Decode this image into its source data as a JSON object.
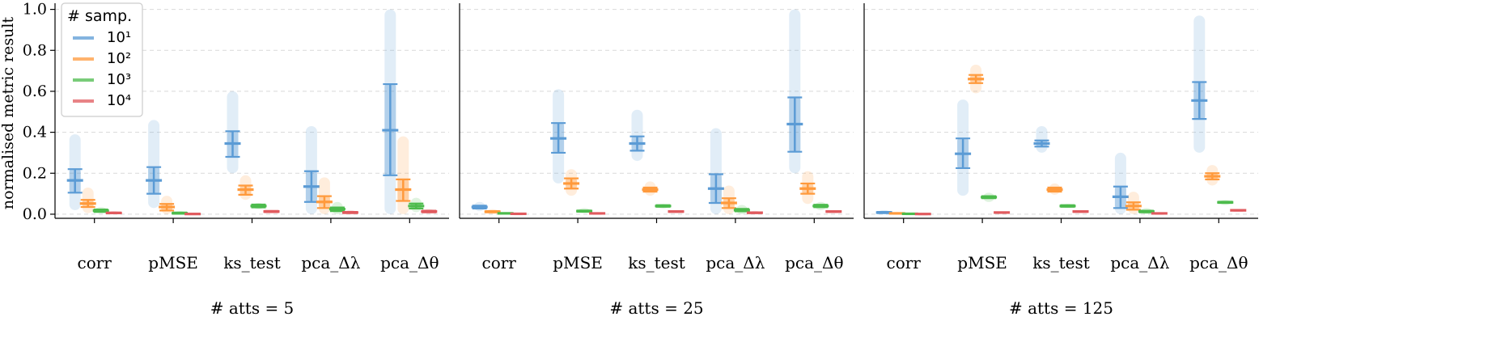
{
  "figure": {
    "ylabel": "normalised metric result"
  },
  "legend": {
    "title": "# samp.",
    "labels": [
      "10¹",
      "10²",
      "10³",
      "10⁴"
    ],
    "location": "top-left"
  },
  "colors": {
    "series": [
      "#5b9bd5",
      "#ff9a3c",
      "#4cbb4c",
      "#e05a5e"
    ],
    "grid": "#d9d9d9",
    "axis": "#000000"
  },
  "chart_data": [
    {
      "type": "strip-errorbar",
      "title": "# atts = 5",
      "categories": [
        "corr",
        "pMSE",
        "ks_test",
        "pca_Δλ",
        "pca_Δθ"
      ],
      "ylim": [
        -0.02,
        1.03
      ],
      "yticks": [
        "0.0",
        "0.2",
        "0.4",
        "0.6",
        "0.8",
        "1.0"
      ],
      "grid": true,
      "series": [
        {
          "name": "10¹",
          "mean": [
            0.165,
            0.165,
            0.345,
            0.135,
            0.41
          ],
          "lower": [
            0.105,
            0.1,
            0.28,
            0.06,
            0.19
          ],
          "upper": [
            0.22,
            0.23,
            0.405,
            0.21,
            0.635
          ],
          "min": [
            0.02,
            0.03,
            0.2,
            0.0,
            0.0
          ],
          "max": [
            0.39,
            0.46,
            0.6,
            0.43,
            1.0
          ]
        },
        {
          "name": "10²",
          "mean": [
            0.052,
            0.035,
            0.12,
            0.06,
            0.12
          ],
          "lower": [
            0.035,
            0.018,
            0.095,
            0.03,
            0.065
          ],
          "upper": [
            0.07,
            0.05,
            0.14,
            0.088,
            0.17
          ],
          "min": [
            0.005,
            0.0,
            0.07,
            0.0,
            0.0
          ],
          "max": [
            0.13,
            0.09,
            0.19,
            0.18,
            0.38
          ]
        },
        {
          "name": "10³",
          "mean": [
            0.017,
            0.005,
            0.04,
            0.025,
            0.04
          ],
          "lower": [
            0.011,
            0.002,
            0.033,
            0.015,
            0.028
          ],
          "upper": [
            0.023,
            0.008,
            0.047,
            0.033,
            0.052
          ],
          "min": [
            0.005,
            0.0,
            0.025,
            0.0,
            0.01
          ],
          "max": [
            0.035,
            0.015,
            0.055,
            0.06,
            0.08
          ]
        },
        {
          "name": "10⁴",
          "mean": [
            0.006,
            0.001,
            0.013,
            0.008,
            0.013
          ],
          "lower": [
            0.004,
            0.0,
            0.01,
            0.005,
            0.009
          ],
          "upper": [
            0.008,
            0.003,
            0.016,
            0.011,
            0.017
          ],
          "min": [
            0.0,
            0.0,
            0.005,
            0.0,
            0.003
          ],
          "max": [
            0.015,
            0.006,
            0.02,
            0.02,
            0.025
          ]
        }
      ]
    },
    {
      "type": "strip-errorbar",
      "title": "# atts = 25",
      "categories": [
        "corr",
        "pMSE",
        "ks_test",
        "pca_Δλ",
        "pca_Δθ"
      ],
      "ylim": [
        -0.02,
        1.03
      ],
      "yticks": [
        "0.0",
        "0.2",
        "0.4",
        "0.6",
        "0.8",
        "1.0"
      ],
      "grid": true,
      "series": [
        {
          "name": "10¹",
          "mean": [
            0.035,
            0.37,
            0.345,
            0.125,
            0.44
          ],
          "lower": [
            0.028,
            0.3,
            0.31,
            0.055,
            0.305
          ],
          "upper": [
            0.042,
            0.445,
            0.38,
            0.195,
            0.57
          ],
          "min": [
            0.015,
            0.15,
            0.26,
            0.0,
            0.2
          ],
          "max": [
            0.06,
            0.61,
            0.51,
            0.42,
            1.0
          ]
        },
        {
          "name": "10²",
          "mean": [
            0.012,
            0.15,
            0.12,
            0.055,
            0.125
          ],
          "lower": [
            0.009,
            0.125,
            0.11,
            0.03,
            0.1
          ],
          "upper": [
            0.015,
            0.175,
            0.13,
            0.078,
            0.15
          ],
          "min": [
            0.0,
            0.09,
            0.09,
            0.0,
            0.05
          ],
          "max": [
            0.025,
            0.22,
            0.16,
            0.14,
            0.21
          ]
        },
        {
          "name": "10³",
          "mean": [
            0.004,
            0.015,
            0.04,
            0.02,
            0.04
          ],
          "lower": [
            0.002,
            0.012,
            0.036,
            0.014,
            0.034
          ],
          "upper": [
            0.006,
            0.018,
            0.044,
            0.026,
            0.046
          ],
          "min": [
            0.0,
            0.005,
            0.028,
            0.0,
            0.02
          ],
          "max": [
            0.01,
            0.03,
            0.05,
            0.045,
            0.06
          ]
        },
        {
          "name": "10⁴",
          "mean": [
            0.002,
            0.004,
            0.013,
            0.007,
            0.013
          ],
          "lower": [
            0.001,
            0.003,
            0.011,
            0.005,
            0.011
          ],
          "upper": [
            0.003,
            0.005,
            0.015,
            0.009,
            0.015
          ],
          "min": [
            0.0,
            0.0,
            0.006,
            0.0,
            0.005
          ],
          "max": [
            0.006,
            0.01,
            0.02,
            0.016,
            0.02
          ]
        }
      ]
    },
    {
      "type": "strip-errorbar",
      "title": "# atts = 125",
      "categories": [
        "corr",
        "pMSE",
        "ks_test",
        "pca_Δλ",
        "pca_Δθ"
      ],
      "ylim": [
        -0.02,
        1.03
      ],
      "yticks": [
        "0.0",
        "0.2",
        "0.4",
        "0.6",
        "0.8",
        "1.0"
      ],
      "grid": true,
      "series": [
        {
          "name": "10¹",
          "mean": [
            0.008,
            0.295,
            0.345,
            0.085,
            0.555
          ],
          "lower": [
            0.005,
            0.225,
            0.33,
            0.03,
            0.465
          ],
          "upper": [
            0.011,
            0.37,
            0.36,
            0.135,
            0.645
          ],
          "min": [
            0.0,
            0.09,
            0.3,
            0.0,
            0.3
          ],
          "max": [
            0.02,
            0.56,
            0.43,
            0.3,
            0.97
          ]
        },
        {
          "name": "10²",
          "mean": [
            0.004,
            0.66,
            0.12,
            0.04,
            0.185
          ],
          "lower": [
            0.003,
            0.64,
            0.11,
            0.022,
            0.17
          ],
          "upper": [
            0.005,
            0.68,
            0.13,
            0.058,
            0.2
          ],
          "min": [
            0.0,
            0.59,
            0.095,
            0.0,
            0.14
          ],
          "max": [
            0.012,
            0.73,
            0.15,
            0.11,
            0.24
          ]
        },
        {
          "name": "10³",
          "mean": [
            0.002,
            0.083,
            0.04,
            0.013,
            0.058
          ],
          "lower": [
            0.001,
            0.078,
            0.036,
            0.009,
            0.055
          ],
          "upper": [
            0.003,
            0.088,
            0.044,
            0.017,
            0.061
          ],
          "min": [
            0.0,
            0.06,
            0.03,
            0.0,
            0.045
          ],
          "max": [
            0.006,
            0.105,
            0.05,
            0.03,
            0.07
          ]
        },
        {
          "name": "10⁴",
          "mean": [
            0.001,
            0.008,
            0.013,
            0.004,
            0.019
          ],
          "lower": [
            0.0,
            0.007,
            0.011,
            0.003,
            0.018
          ],
          "upper": [
            0.002,
            0.009,
            0.015,
            0.005,
            0.02
          ],
          "min": [
            0.0,
            0.004,
            0.008,
            0.0,
            0.014
          ],
          "max": [
            0.004,
            0.012,
            0.018,
            0.01,
            0.024
          ]
        }
      ]
    }
  ]
}
